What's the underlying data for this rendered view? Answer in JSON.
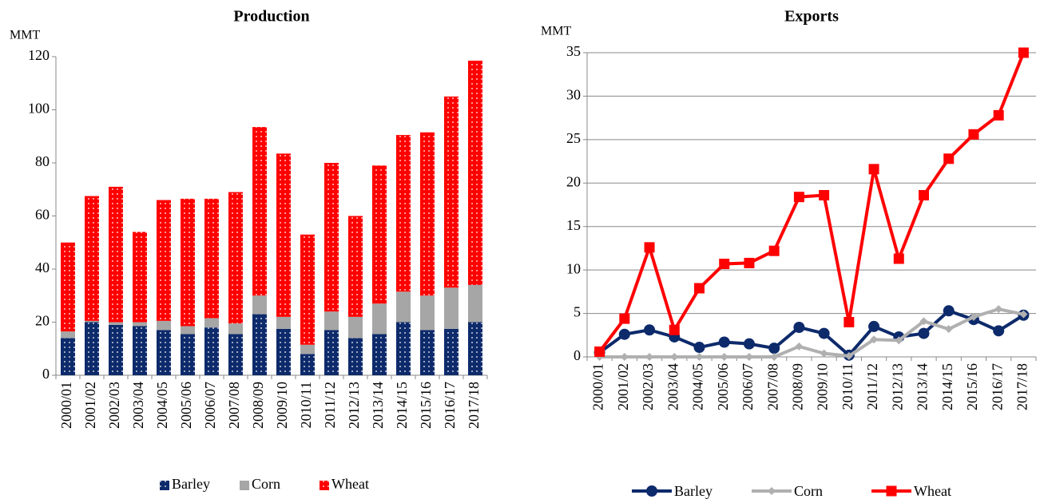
{
  "chart_data": [
    {
      "type": "bar",
      "stacked": true,
      "title": "Production",
      "ylabel": "MMT",
      "categories": [
        "2000/01",
        "2001/02",
        "2002/03",
        "2003/04",
        "2004/05",
        "2005/06",
        "2006/07",
        "2007/08",
        "2008/09",
        "2009/10",
        "2010/11",
        "2011/12",
        "2012/13",
        "2013/14",
        "2014/15",
        "2015/16",
        "2016/17",
        "2017/18"
      ],
      "series": [
        {
          "name": "Barley",
          "color": "#0d2a6b",
          "values": [
            14,
            20,
            19,
            18.5,
            17,
            15.5,
            18,
            15.5,
            23,
            17.5,
            8,
            17,
            14,
            15.5,
            20,
            17,
            17.5,
            20
          ]
        },
        {
          "name": "Corn",
          "color": "#a6a6a6",
          "values": [
            2.5,
            0.5,
            1,
            1.5,
            3.5,
            3,
            3.5,
            4,
            7,
            4.5,
            3.5,
            7,
            8,
            11.5,
            11.5,
            13,
            15.5,
            14
          ]
        },
        {
          "name": "Wheat",
          "color": "#ff0000",
          "values": [
            33.5,
            47,
            51,
            34,
            45.5,
            48,
            45,
            49.5,
            63.5,
            61.5,
            41.5,
            56,
            38,
            52,
            59,
            61.5,
            72,
            84.5
          ]
        }
      ],
      "ylim": [
        0,
        120
      ],
      "yticks": [
        0,
        20,
        40,
        60,
        80,
        100,
        120
      ],
      "grid": false,
      "legend": "bottom"
    },
    {
      "type": "line",
      "title": "Exports",
      "ylabel": "MMT",
      "categories": [
        "2000/01",
        "2001/02",
        "2002/03",
        "2003/04",
        "2004/05",
        "2005/06",
        "2006/07",
        "2007/08",
        "2008/09",
        "2009/10",
        "2010/11",
        "2011/12",
        "2012/13",
        "2013/14",
        "2014/15",
        "2015/16",
        "2016/17",
        "2017/18"
      ],
      "series": [
        {
          "name": "Barley",
          "color": "#0d2a6b",
          "marker": "circle",
          "values": [
            0.5,
            2.6,
            3.1,
            2.3,
            1.1,
            1.7,
            1.5,
            1.0,
            3.4,
            2.7,
            0.2,
            3.5,
            2.3,
            2.7,
            5.3,
            4.3,
            3.0,
            4.8
          ]
        },
        {
          "name": "Corn",
          "color": "#b0b0b0",
          "marker": "diamond",
          "values": [
            0,
            0,
            0,
            0,
            0,
            0,
            0,
            0,
            1.2,
            0.4,
            0.1,
            2.0,
            1.9,
            4.1,
            3.2,
            4.6,
            5.5,
            4.9
          ]
        },
        {
          "name": "Wheat",
          "color": "#ff0000",
          "marker": "square",
          "values": [
            0.6,
            4.4,
            12.6,
            3.1,
            7.9,
            10.7,
            10.8,
            12.2,
            18.4,
            18.6,
            4.0,
            21.6,
            11.3,
            18.6,
            22.8,
            25.6,
            27.8,
            35
          ]
        }
      ],
      "ylim": [
        0,
        35
      ],
      "yticks": [
        0,
        5,
        10,
        15,
        20,
        25,
        30,
        35
      ],
      "grid": true,
      "legend": "bottom"
    }
  ]
}
